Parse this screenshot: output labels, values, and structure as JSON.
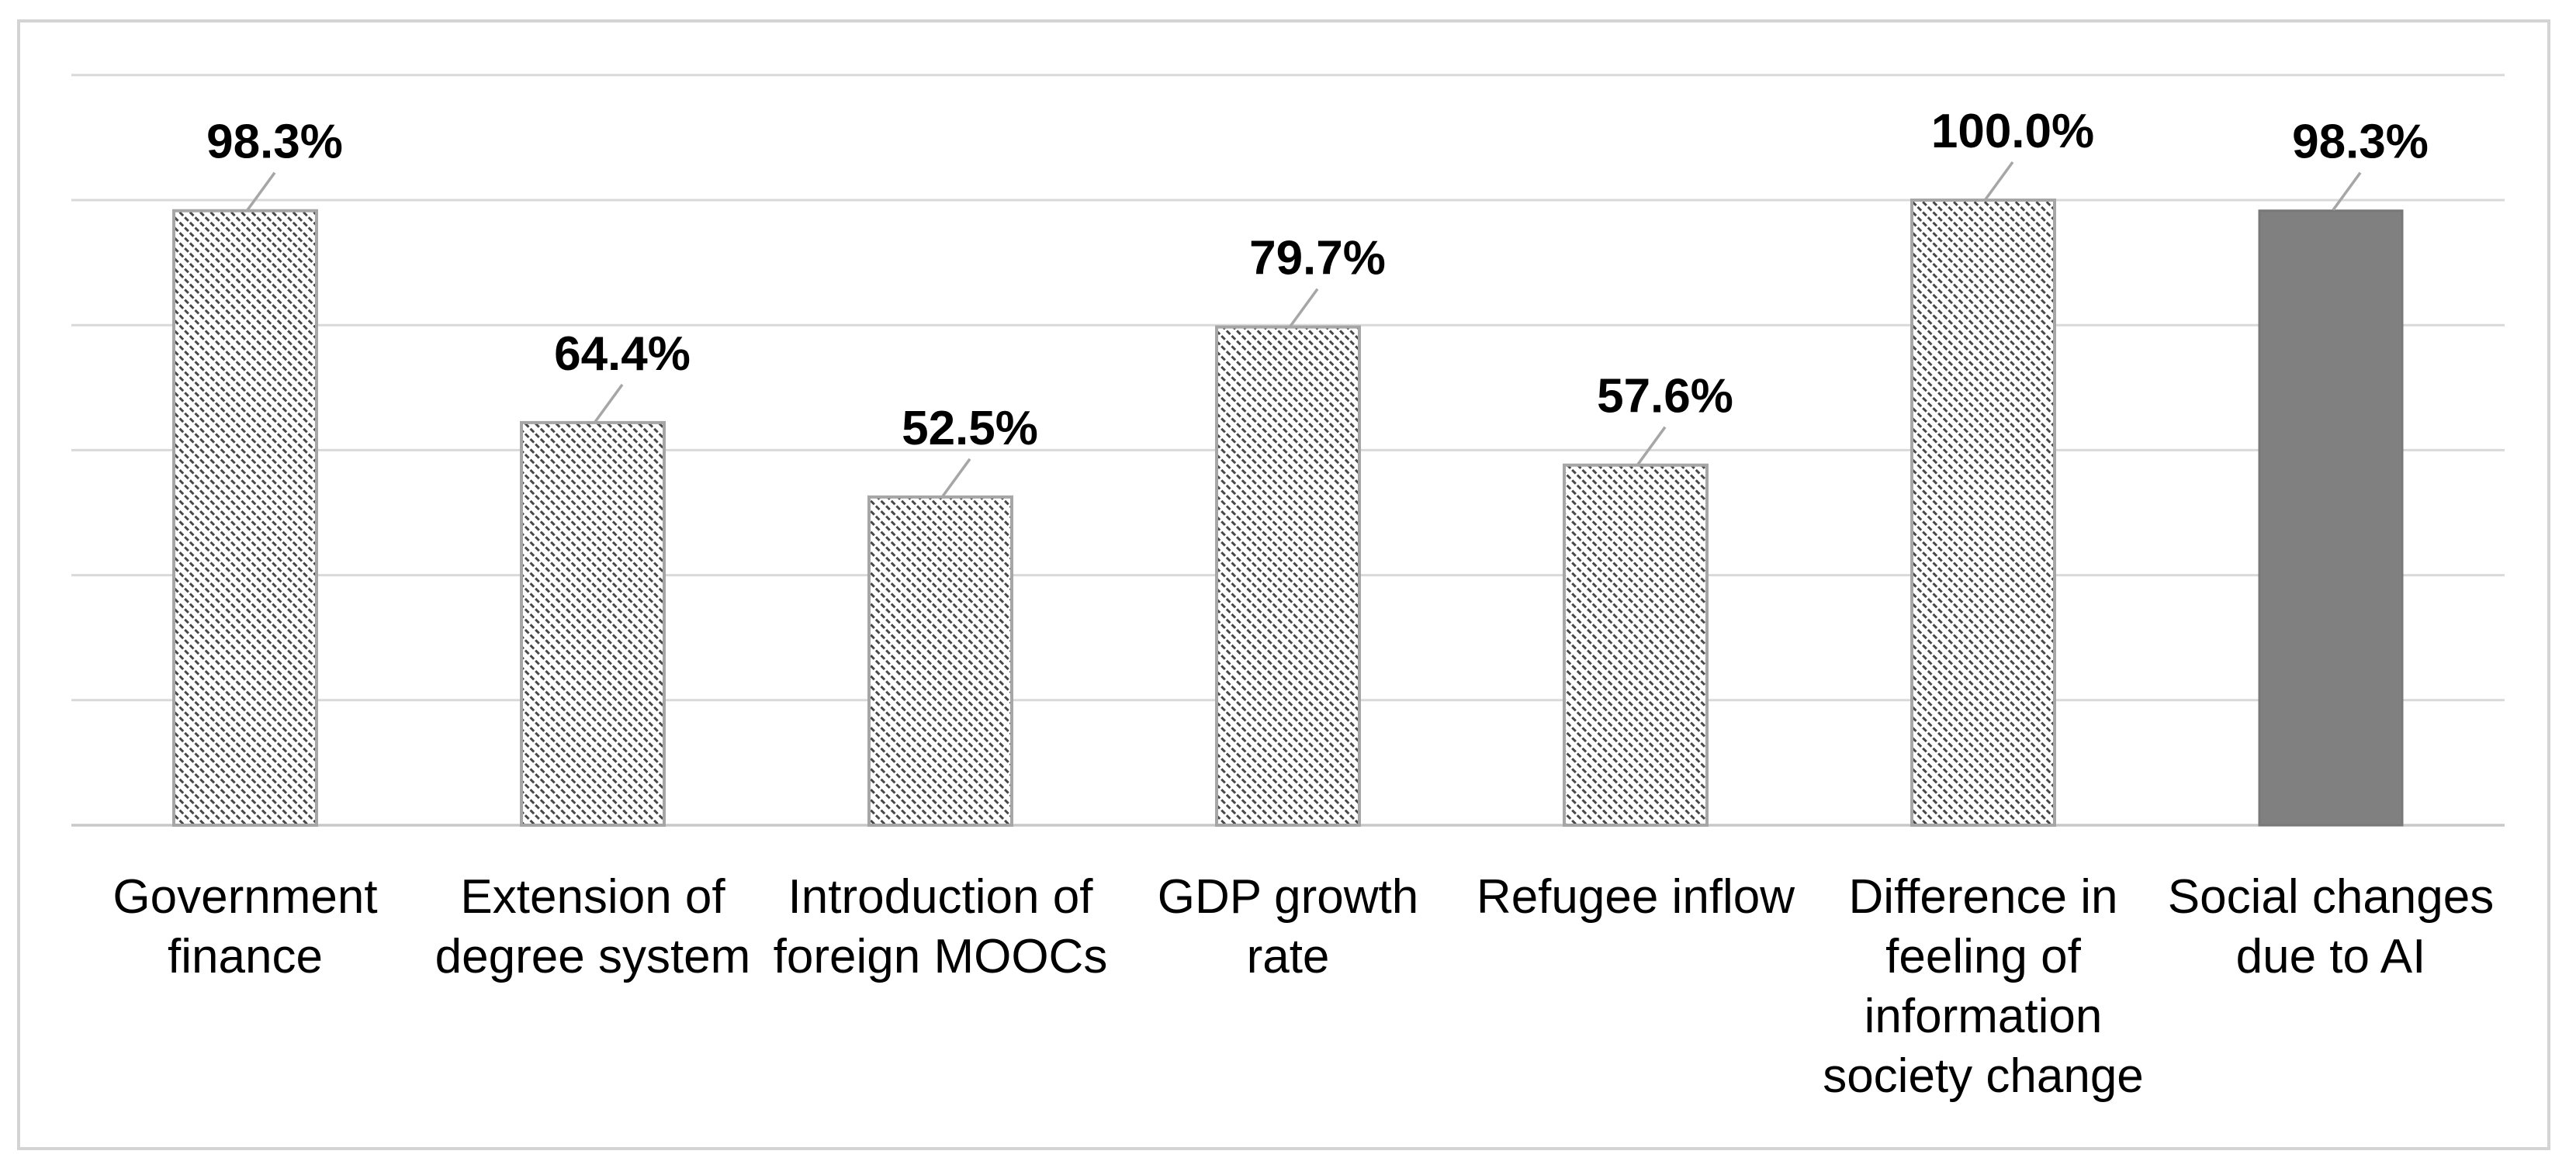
{
  "figure": {
    "background": "#ffffff",
    "border_color": "#d4d4d4"
  },
  "chart_data": {
    "type": "bar",
    "title": "",
    "xlabel": "",
    "ylabel": "",
    "categories": [
      "Government finance",
      "Extension of degree system",
      "Introduction of foreign MOOCs",
      "GDP growth rate",
      "Refugee inflow",
      "Difference in feeling of information society change",
      "Social changes due to AI"
    ],
    "category_lines": [
      [
        "Government",
        "finance"
      ],
      [
        "Extension of",
        "degree system"
      ],
      [
        "Introduction of",
        "foreign MOOCs"
      ],
      [
        "GDP growth",
        "rate"
      ],
      [
        "Refugee inflow"
      ],
      [
        "Difference in",
        "feeling of",
        "information",
        "society change"
      ],
      [
        "Social changes",
        "due to AI"
      ]
    ],
    "values": [
      98.3,
      64.4,
      52.5,
      79.7,
      57.6,
      100.0,
      98.3
    ],
    "data_labels": [
      "98.3%",
      "64.4%",
      "52.5%",
      "79.7%",
      "57.6%",
      "100.0%",
      "98.3%"
    ],
    "bar_styles": [
      "hatch",
      "hatch",
      "hatch",
      "hatch",
      "hatch",
      "hatch",
      "solid"
    ],
    "unit": "%",
    "ylim": [
      0,
      120
    ],
    "gridline_step": 20,
    "grid": true,
    "legend_position": "none",
    "y_tick_labels_visible": false,
    "colors": {
      "gridline": "#d9d9d9",
      "axis_line": "#c8c8c8",
      "bar_border": "#a6a6a6",
      "hatch_line": "#474747",
      "hatch_background": "#ffffff",
      "solid_fill": "#808080",
      "solid_border": "#787878",
      "leader_line": "#a6a6a6",
      "label_color": "#000000"
    }
  }
}
